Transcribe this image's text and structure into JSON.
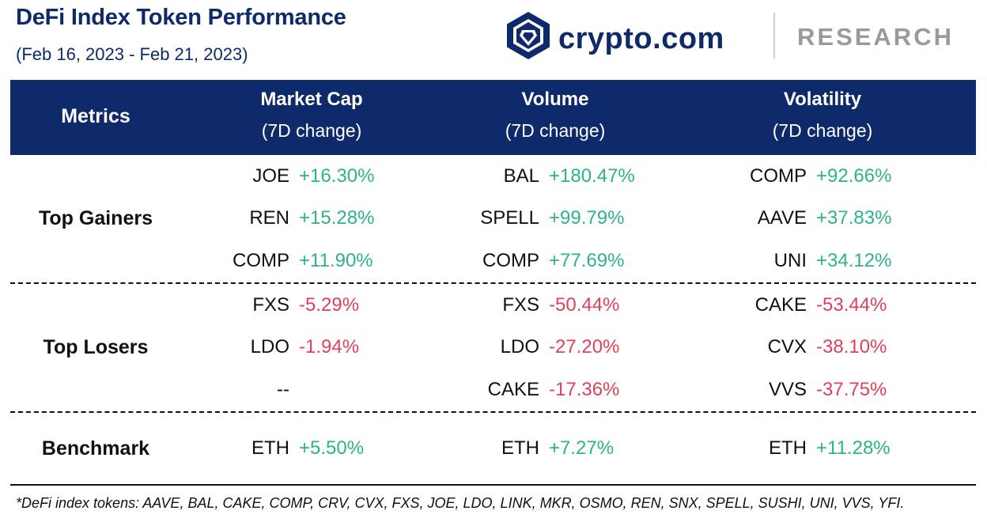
{
  "header": {
    "title": "DeFi Index Token Performance",
    "subtitle": "(Feb 16, 2023 - Feb 21, 2023)",
    "brand_name": "crypto.com",
    "brand_section": "RESEARCH"
  },
  "table": {
    "columns": [
      {
        "label": "Metrics",
        "sub": ""
      },
      {
        "label": "Market Cap",
        "sub": "(7D change)"
      },
      {
        "label": "Volume",
        "sub": "(7D change)"
      },
      {
        "label": "Volatility",
        "sub": "(7D change)"
      }
    ],
    "sections": [
      {
        "label": "Top Gainers",
        "rows": [
          [
            {
              "token": "JOE",
              "change": "+16.30%"
            },
            {
              "token": "BAL",
              "change": "+180.47%"
            },
            {
              "token": "COMP",
              "change": "+92.66%"
            }
          ],
          [
            {
              "token": "REN",
              "change": "+15.28%"
            },
            {
              "token": "SPELL",
              "change": "+99.79%"
            },
            {
              "token": "AAVE",
              "change": "+37.83%"
            }
          ],
          [
            {
              "token": "COMP",
              "change": "+11.90%"
            },
            {
              "token": "COMP",
              "change": "+77.69%"
            },
            {
              "token": "UNI",
              "change": "+34.12%"
            }
          ]
        ]
      },
      {
        "label": "Top Losers",
        "rows": [
          [
            {
              "token": "FXS",
              "change": "-5.29%"
            },
            {
              "token": "FXS",
              "change": "-50.44%"
            },
            {
              "token": "CAKE",
              "change": "-53.44%"
            }
          ],
          [
            {
              "token": "LDO",
              "change": "-1.94%"
            },
            {
              "token": "LDO",
              "change": "-27.20%"
            },
            {
              "token": "CVX",
              "change": "-38.10%"
            }
          ],
          [
            {
              "token": "--",
              "change": ""
            },
            {
              "token": "CAKE",
              "change": "-17.36%"
            },
            {
              "token": "VVS",
              "change": "-37.75%"
            }
          ]
        ]
      },
      {
        "label": "Benchmark",
        "rows": [
          [
            {
              "token": "ETH",
              "change": "+5.50%"
            },
            {
              "token": "ETH",
              "change": "+7.27%"
            },
            {
              "token": "ETH",
              "change": "+11.28%"
            }
          ]
        ]
      }
    ]
  },
  "colors": {
    "navy": "#0e2a6a",
    "positive": "#2db38a",
    "negative": "#e0405a",
    "research_gray": "#9a9a9a"
  },
  "footnote": "*DeFi index tokens: AAVE, BAL, CAKE, COMP, CRV, CVX, FXS, JOE, LDO, LINK, MKR, OSMO, REN, SNX, SPELL, SUSHI, UNI, VVS, YFI."
}
